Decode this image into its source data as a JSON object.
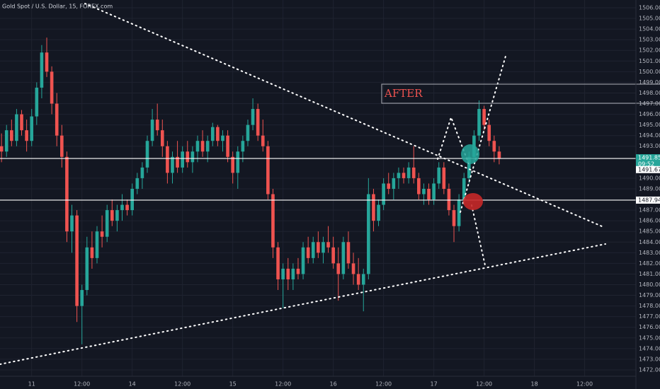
{
  "chart_data": {
    "type": "candlestick",
    "title": "Gold Spot / U.S. Dollar, 15, FOREX.com",
    "up_color": "#26a69a",
    "down_color": "#ef5350",
    "grid": true,
    "xlim": [
      -6.3,
      120.2
    ],
    "ylim": [
      1471.4,
      1506.73
    ],
    "xticks": [
      {
        "value": 0,
        "label": "11"
      },
      {
        "value": 10,
        "label": "12:00"
      },
      {
        "value": 20,
        "label": "14"
      },
      {
        "value": 30,
        "label": "12:00"
      },
      {
        "value": 40,
        "label": "15"
      },
      {
        "value": 50,
        "label": "12:00"
      },
      {
        "value": 60,
        "label": "16"
      },
      {
        "value": 70,
        "label": "12:00"
      },
      {
        "value": 80,
        "label": "17"
      },
      {
        "value": 90,
        "label": "12:00"
      },
      {
        "value": 100,
        "label": "18"
      },
      {
        "value": 110,
        "label": "12:00"
      }
    ],
    "yticks": [
      {
        "value": 1472,
        "label": "1472.00"
      },
      {
        "value": 1473,
        "label": "1473.00"
      },
      {
        "value": 1474,
        "label": "1474.00"
      },
      {
        "value": 1475,
        "label": "1475.00"
      },
      {
        "value": 1476,
        "label": "1476.00"
      },
      {
        "value": 1477,
        "label": "1477.00"
      },
      {
        "value": 1478,
        "label": "1478.00"
      },
      {
        "value": 1479,
        "label": "1479.00"
      },
      {
        "value": 1480,
        "label": "1480.00"
      },
      {
        "value": 1481,
        "label": "1481.00"
      },
      {
        "value": 1482,
        "label": "1482.00"
      },
      {
        "value": 1483,
        "label": "1483.00"
      },
      {
        "value": 1484,
        "label": "1484.00"
      },
      {
        "value": 1485,
        "label": "1485.00"
      },
      {
        "value": 1486,
        "label": "1486.00"
      },
      {
        "value": 1487,
        "label": "1487.00"
      },
      {
        "value": 1489,
        "label": "1489.00"
      },
      {
        "value": 1490,
        "label": "1490.00"
      },
      {
        "value": 1493,
        "label": "1493.00"
      },
      {
        "value": 1494,
        "label": "1494.00"
      },
      {
        "value": 1495,
        "label": "1495.00"
      },
      {
        "value": 1496,
        "label": "1496.00"
      },
      {
        "value": 1497,
        "label": "1497.00"
      },
      {
        "value": 1498,
        "label": "1498.00"
      },
      {
        "value": 1499,
        "label": "1499.00"
      },
      {
        "value": 1500,
        "label": "1500.00"
      },
      {
        "value": 1501,
        "label": "1501.00"
      },
      {
        "value": 1502,
        "label": "1502.00"
      },
      {
        "value": 1503,
        "label": "1503.00"
      },
      {
        "value": 1504,
        "label": "1504.00"
      },
      {
        "value": 1505,
        "label": "1505.00"
      },
      {
        "value": 1506,
        "label": "1506.00"
      }
    ],
    "last_price": 1491.85,
    "countdown": "09:52",
    "bid_price": 1491.67,
    "horizontal_line": 1487.94,
    "annotation": "AFTER",
    "candles": [
      {
        "x": -6,
        "open": 1493.0,
        "high": 1494.2,
        "low": 1491.5,
        "close": 1492.5
      },
      {
        "x": -5,
        "open": 1492.5,
        "high": 1495.0,
        "low": 1492.0,
        "close": 1494.5
      },
      {
        "x": -4,
        "open": 1494.5,
        "high": 1495.5,
        "low": 1493.0,
        "close": 1493.5
      },
      {
        "x": -3,
        "open": 1493.5,
        "high": 1496.5,
        "low": 1493.0,
        "close": 1496.0
      },
      {
        "x": -2,
        "open": 1496.0,
        "high": 1496.4,
        "low": 1494.0,
        "close": 1494.5
      },
      {
        "x": -1,
        "open": 1494.5,
        "high": 1495.5,
        "low": 1492.5,
        "close": 1493.5
      },
      {
        "x": 0,
        "open": 1493.5,
        "high": 1496.5,
        "low": 1493.0,
        "close": 1495.8
      },
      {
        "x": 1,
        "open": 1495.8,
        "high": 1499.0,
        "low": 1495.0,
        "close": 1498.5
      },
      {
        "x": 2,
        "open": 1498.5,
        "high": 1502.5,
        "low": 1497.5,
        "close": 1501.8
      },
      {
        "x": 3,
        "open": 1501.8,
        "high": 1503.2,
        "low": 1499.5,
        "close": 1500.0
      },
      {
        "x": 4,
        "open": 1500.0,
        "high": 1500.5,
        "low": 1496.0,
        "close": 1497.0
      },
      {
        "x": 5,
        "open": 1497.0,
        "high": 1498.0,
        "low": 1493.0,
        "close": 1494.0
      },
      {
        "x": 6,
        "open": 1494.0,
        "high": 1495.0,
        "low": 1491.0,
        "close": 1492.0
      },
      {
        "x": 7,
        "open": 1492.0,
        "high": 1492.5,
        "low": 1484.0,
        "close": 1485.0
      },
      {
        "x": 8,
        "open": 1485.0,
        "high": 1487.5,
        "low": 1483.0,
        "close": 1486.5
      },
      {
        "x": 9,
        "open": 1486.5,
        "high": 1487.0,
        "low": 1476.5,
        "close": 1478.0
      },
      {
        "x": 10,
        "open": 1478.0,
        "high": 1480.0,
        "low": 1474.4,
        "close": 1479.5
      },
      {
        "x": 11,
        "open": 1479.5,
        "high": 1484.5,
        "low": 1479.0,
        "close": 1483.5
      },
      {
        "x": 12,
        "open": 1483.5,
        "high": 1485.0,
        "low": 1481.5,
        "close": 1482.5
      },
      {
        "x": 13,
        "open": 1482.5,
        "high": 1485.5,
        "low": 1482.0,
        "close": 1485.0
      },
      {
        "x": 14,
        "open": 1485.0,
        "high": 1486.5,
        "low": 1483.5,
        "close": 1484.5
      },
      {
        "x": 15,
        "open": 1484.5,
        "high": 1487.5,
        "low": 1484.0,
        "close": 1487.0
      },
      {
        "x": 16,
        "open": 1487.0,
        "high": 1488.0,
        "low": 1485.5,
        "close": 1486.0
      },
      {
        "x": 17,
        "open": 1486.0,
        "high": 1487.5,
        "low": 1485.0,
        "close": 1487.0
      },
      {
        "x": 18,
        "open": 1487.0,
        "high": 1488.5,
        "low": 1486.0,
        "close": 1487.5
      },
      {
        "x": 19,
        "open": 1487.5,
        "high": 1488.0,
        "low": 1486.5,
        "close": 1487.0
      },
      {
        "x": 20,
        "open": 1487.0,
        "high": 1489.5,
        "low": 1486.5,
        "close": 1489.0
      },
      {
        "x": 21,
        "open": 1489.0,
        "high": 1490.5,
        "low": 1488.5,
        "close": 1490.0
      },
      {
        "x": 22,
        "open": 1490.0,
        "high": 1491.5,
        "low": 1489.0,
        "close": 1491.0
      },
      {
        "x": 23,
        "open": 1491.0,
        "high": 1494.0,
        "low": 1490.5,
        "close": 1493.5
      },
      {
        "x": 24,
        "open": 1493.5,
        "high": 1496.5,
        "low": 1493.0,
        "close": 1495.5
      },
      {
        "x": 25,
        "open": 1495.5,
        "high": 1497.0,
        "low": 1494.0,
        "close": 1494.5
      },
      {
        "x": 26,
        "open": 1494.5,
        "high": 1495.5,
        "low": 1492.0,
        "close": 1493.0
      },
      {
        "x": 27,
        "open": 1493.0,
        "high": 1493.5,
        "low": 1489.5,
        "close": 1490.5
      },
      {
        "x": 28,
        "open": 1490.5,
        "high": 1492.5,
        "low": 1489.5,
        "close": 1492.0
      },
      {
        "x": 29,
        "open": 1492.0,
        "high": 1493.5,
        "low": 1490.5,
        "close": 1491.0
      },
      {
        "x": 30,
        "open": 1491.0,
        "high": 1493.0,
        "low": 1490.5,
        "close": 1492.5
      },
      {
        "x": 31,
        "open": 1492.5,
        "high": 1493.5,
        "low": 1491.0,
        "close": 1491.5
      },
      {
        "x": 32,
        "open": 1491.5,
        "high": 1493.0,
        "low": 1490.5,
        "close": 1492.5
      },
      {
        "x": 33,
        "open": 1492.5,
        "high": 1494.0,
        "low": 1491.5,
        "close": 1493.5
      },
      {
        "x": 34,
        "open": 1493.5,
        "high": 1494.5,
        "low": 1492.0,
        "close": 1492.5
      },
      {
        "x": 35,
        "open": 1492.5,
        "high": 1494.0,
        "low": 1491.5,
        "close": 1493.5
      },
      {
        "x": 36,
        "open": 1493.5,
        "high": 1495.2,
        "low": 1493.0,
        "close": 1494.8
      },
      {
        "x": 37,
        "open": 1494.8,
        "high": 1495.0,
        "low": 1493.0,
        "close": 1493.5
      },
      {
        "x": 38,
        "open": 1493.5,
        "high": 1494.5,
        "low": 1492.5,
        "close": 1494.0
      },
      {
        "x": 39,
        "open": 1494.0,
        "high": 1494.5,
        "low": 1491.5,
        "close": 1492.0
      },
      {
        "x": 40,
        "open": 1492.0,
        "high": 1492.5,
        "low": 1489.5,
        "close": 1490.5
      },
      {
        "x": 41,
        "open": 1490.5,
        "high": 1493.0,
        "low": 1489.0,
        "close": 1492.5
      },
      {
        "x": 42,
        "open": 1492.5,
        "high": 1494.0,
        "low": 1491.5,
        "close": 1493.5
      },
      {
        "x": 43,
        "open": 1493.5,
        "high": 1495.5,
        "low": 1493.0,
        "close": 1495.0
      },
      {
        "x": 44,
        "open": 1495.0,
        "high": 1497.5,
        "low": 1494.5,
        "close": 1496.5
      },
      {
        "x": 45,
        "open": 1496.5,
        "high": 1497.0,
        "low": 1493.5,
        "close": 1494.0
      },
      {
        "x": 46,
        "open": 1494.0,
        "high": 1495.5,
        "low": 1492.5,
        "close": 1493.0
      },
      {
        "x": 47,
        "open": 1493.0,
        "high": 1493.5,
        "low": 1488.0,
        "close": 1488.5
      },
      {
        "x": 48,
        "open": 1488.5,
        "high": 1489.0,
        "low": 1482.5,
        "close": 1483.5
      },
      {
        "x": 49,
        "open": 1483.5,
        "high": 1484.0,
        "low": 1479.5,
        "close": 1480.5
      },
      {
        "x": 50,
        "open": 1480.5,
        "high": 1482.0,
        "low": 1477.8,
        "close": 1481.5
      },
      {
        "x": 51,
        "open": 1481.5,
        "high": 1482.5,
        "low": 1479.5,
        "close": 1480.5
      },
      {
        "x": 52,
        "open": 1480.5,
        "high": 1482.0,
        "low": 1479.5,
        "close": 1481.5
      },
      {
        "x": 53,
        "open": 1481.5,
        "high": 1482.5,
        "low": 1480.5,
        "close": 1481.0
      },
      {
        "x": 54,
        "open": 1481.0,
        "high": 1484.0,
        "low": 1480.5,
        "close": 1483.5
      },
      {
        "x": 55,
        "open": 1483.5,
        "high": 1484.5,
        "low": 1482.0,
        "close": 1482.5
      },
      {
        "x": 56,
        "open": 1482.5,
        "high": 1484.5,
        "low": 1482.0,
        "close": 1484.0
      },
      {
        "x": 57,
        "open": 1484.0,
        "high": 1485.0,
        "low": 1482.5,
        "close": 1483.0
      },
      {
        "x": 58,
        "open": 1483.0,
        "high": 1484.5,
        "low": 1482.0,
        "close": 1484.0
      },
      {
        "x": 59,
        "open": 1484.0,
        "high": 1485.5,
        "low": 1483.0,
        "close": 1483.5
      },
      {
        "x": 60,
        "open": 1483.5,
        "high": 1484.5,
        "low": 1481.5,
        "close": 1482.0
      },
      {
        "x": 61,
        "open": 1482.0,
        "high": 1483.5,
        "low": 1478.5,
        "close": 1481.0
      },
      {
        "x": 62,
        "open": 1481.0,
        "high": 1484.5,
        "low": 1480.5,
        "close": 1484.0
      },
      {
        "x": 63,
        "open": 1484.0,
        "high": 1485.0,
        "low": 1481.5,
        "close": 1482.0
      },
      {
        "x": 64,
        "open": 1482.0,
        "high": 1483.0,
        "low": 1480.0,
        "close": 1481.0
      },
      {
        "x": 65,
        "open": 1481.0,
        "high": 1482.5,
        "low": 1479.5,
        "close": 1480.0
      },
      {
        "x": 66,
        "open": 1480.0,
        "high": 1481.5,
        "low": 1477.5,
        "close": 1481.0
      },
      {
        "x": 67,
        "open": 1481.0,
        "high": 1490.0,
        "low": 1480.5,
        "close": 1488.5
      },
      {
        "x": 68,
        "open": 1488.5,
        "high": 1489.0,
        "low": 1485.0,
        "close": 1486.0
      },
      {
        "x": 69,
        "open": 1486.0,
        "high": 1488.0,
        "low": 1485.5,
        "close": 1487.5
      },
      {
        "x": 70,
        "open": 1487.5,
        "high": 1490.0,
        "low": 1487.0,
        "close": 1489.5
      },
      {
        "x": 71,
        "open": 1489.5,
        "high": 1490.5,
        "low": 1488.5,
        "close": 1489.0
      },
      {
        "x": 72,
        "open": 1489.0,
        "high": 1490.5,
        "low": 1488.0,
        "close": 1490.0
      },
      {
        "x": 73,
        "open": 1490.0,
        "high": 1491.0,
        "low": 1489.0,
        "close": 1490.5
      },
      {
        "x": 74,
        "open": 1490.5,
        "high": 1491.0,
        "low": 1489.5,
        "close": 1490.0
      },
      {
        "x": 75,
        "open": 1490.0,
        "high": 1491.5,
        "low": 1489.5,
        "close": 1491.0
      },
      {
        "x": 76,
        "open": 1491.0,
        "high": 1493.0,
        "low": 1489.5,
        "close": 1490.0
      },
      {
        "x": 77,
        "open": 1490.0,
        "high": 1490.5,
        "low": 1488.0,
        "close": 1488.5
      },
      {
        "x": 78,
        "open": 1488.5,
        "high": 1489.5,
        "low": 1487.5,
        "close": 1489.0
      },
      {
        "x": 79,
        "open": 1489.0,
        "high": 1489.5,
        "low": 1487.5,
        "close": 1488.0
      },
      {
        "x": 80,
        "open": 1488.0,
        "high": 1490.0,
        "low": 1487.5,
        "close": 1489.5
      },
      {
        "x": 81,
        "open": 1489.5,
        "high": 1491.5,
        "low": 1489.0,
        "close": 1491.0
      },
      {
        "x": 82,
        "open": 1491.0,
        "high": 1491.5,
        "low": 1488.5,
        "close": 1489.0
      },
      {
        "x": 83,
        "open": 1489.0,
        "high": 1489.5,
        "low": 1486.5,
        "close": 1487.0
      },
      {
        "x": 84,
        "open": 1487.0,
        "high": 1487.5,
        "low": 1484.0,
        "close": 1485.5
      },
      {
        "x": 85,
        "open": 1485.5,
        "high": 1488.5,
        "low": 1485.0,
        "close": 1488.0
      },
      {
        "x": 86,
        "open": 1488.0,
        "high": 1490.5,
        "low": 1487.5,
        "close": 1490.0
      },
      {
        "x": 87,
        "open": 1490.0,
        "high": 1492.5,
        "low": 1489.5,
        "close": 1492.0
      },
      {
        "x": 88,
        "open": 1492.0,
        "high": 1494.5,
        "low": 1491.5,
        "close": 1494.0
      },
      {
        "x": 89,
        "open": 1494.0,
        "high": 1497.3,
        "low": 1493.5,
        "close": 1496.5
      },
      {
        "x": 90,
        "open": 1496.5,
        "high": 1496.8,
        "low": 1494.5,
        "close": 1495.0
      },
      {
        "x": 91,
        "open": 1495.0,
        "high": 1495.5,
        "low": 1493.0,
        "close": 1493.5
      },
      {
        "x": 92,
        "open": 1493.5,
        "high": 1494.0,
        "low": 1491.5,
        "close": 1492.5
      },
      {
        "x": 93,
        "open": 1492.5,
        "high": 1493.0,
        "low": 1491.3,
        "close": 1491.85
      }
    ]
  }
}
